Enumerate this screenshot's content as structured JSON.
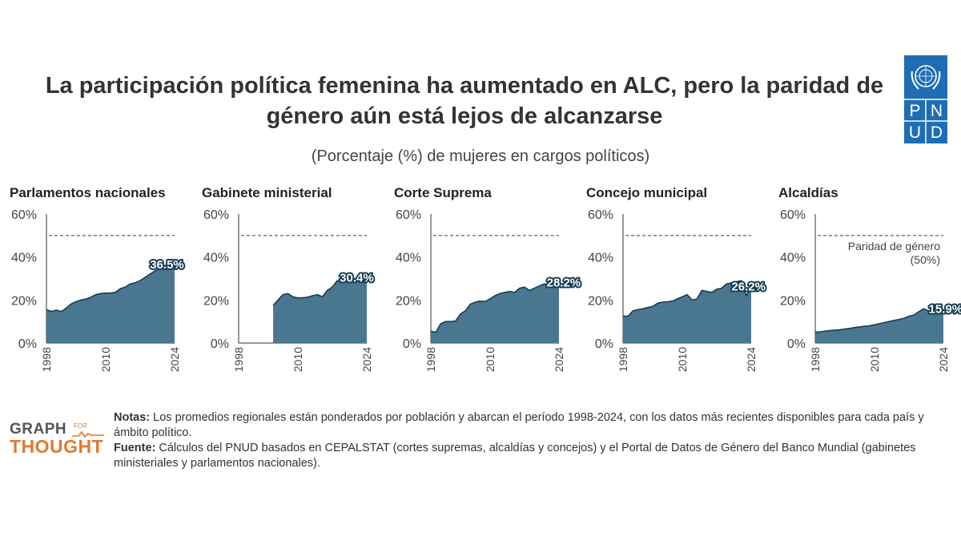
{
  "title": {
    "line1": "La participación política femenina ha aumentado en ALC, pero la paridad de",
    "line2": "género aún está lejos de alcanzarse"
  },
  "subtitle": "(Porcentaje (%) de mujeres en cargos políticos)",
  "undp_logo": {
    "letters": [
      "P",
      "N",
      "U",
      "D"
    ],
    "color": "#1F6EB4"
  },
  "colors": {
    "area": "#4A7790",
    "line": "#163C52",
    "parity_line": "#888888",
    "label_outline": "#163C52"
  },
  "chart_data": [
    {
      "type": "area",
      "title": "Parlamentos nacionales",
      "x_ticks": [
        "1998",
        "2010",
        "2024"
      ],
      "y_ticks": [
        "0%",
        "20%",
        "40%",
        "60%"
      ],
      "ylim": [
        0,
        60
      ],
      "xlim": [
        1998,
        2024
      ],
      "parity": 50,
      "x": [
        1998,
        1999,
        2000,
        2001,
        2002,
        2003,
        2004,
        2005,
        2006,
        2007,
        2008,
        2009,
        2010,
        2011,
        2012,
        2013,
        2014,
        2015,
        2016,
        2017,
        2018,
        2019,
        2020,
        2021,
        2022,
        2023,
        2024
      ],
      "values": [
        15.5,
        14.7,
        15.3,
        14.6,
        16.2,
        18.2,
        19.2,
        20.0,
        20.4,
        21.3,
        22.5,
        23.0,
        23.2,
        23.2,
        23.6,
        25.3,
        26.0,
        27.5,
        28.0,
        29.0,
        30.5,
        32.0,
        33.5,
        34.5,
        36.0,
        36.2,
        36.5
      ],
      "label": "36.5%",
      "label_at": 2019
    },
    {
      "type": "area",
      "title": "Gabinete ministerial",
      "x_ticks": [
        "1998",
        "2010",
        "2024"
      ],
      "y_ticks": [
        "0%",
        "20%",
        "40%",
        "60%"
      ],
      "ylim": [
        0,
        60
      ],
      "xlim": [
        1998,
        2024
      ],
      "parity": 50,
      "x": [
        2005,
        2006,
        2007,
        2008,
        2009,
        2010,
        2011,
        2012,
        2013,
        2014,
        2015,
        2016,
        2017,
        2018,
        2019,
        2020,
        2021,
        2022,
        2023,
        2024
      ],
      "values": [
        17.5,
        20.0,
        22.5,
        23.0,
        21.5,
        21.0,
        21.0,
        21.3,
        22.0,
        22.5,
        21.5,
        24.5,
        26.0,
        29.0,
        28.0,
        28.5,
        30.0,
        29.5,
        31.5,
        30.4
      ],
      "label": "30.4%",
      "label_at": 2018.5
    },
    {
      "type": "area",
      "title": "Corte Suprema",
      "x_ticks": [
        "1998",
        "2010",
        "2024"
      ],
      "y_ticks": [
        "0%",
        "20%",
        "40%",
        "60%"
      ],
      "ylim": [
        0,
        60
      ],
      "xlim": [
        1998,
        2024
      ],
      "parity": 50,
      "x": [
        1998,
        1999,
        2000,
        2001,
        2002,
        2003,
        2004,
        2005,
        2006,
        2007,
        2008,
        2009,
        2010,
        2011,
        2012,
        2013,
        2014,
        2015,
        2016,
        2017,
        2018,
        2019,
        2020,
        2021,
        2022,
        2023,
        2024
      ],
      "values": [
        5.5,
        5.0,
        9.0,
        10.0,
        10.0,
        10.2,
        13.5,
        15.0,
        18.0,
        19.0,
        19.5,
        19.3,
        20.5,
        22.0,
        23.0,
        23.5,
        24.0,
        23.5,
        25.5,
        26.0,
        24.5,
        25.5,
        26.5,
        27.5,
        27.0,
        26.5,
        28.2
      ],
      "label": "28.2%",
      "label_at": 2021.5
    },
    {
      "type": "area",
      "title": "Concejo municipal",
      "x_ticks": [
        "1998",
        "2010",
        "2024"
      ],
      "y_ticks": [
        "0%",
        "20%",
        "40%",
        "60%"
      ],
      "ylim": [
        0,
        60
      ],
      "xlim": [
        1998,
        2024
      ],
      "parity": 50,
      "x": [
        1998,
        1999,
        2000,
        2001,
        2002,
        2003,
        2004,
        2005,
        2006,
        2007,
        2008,
        2009,
        2010,
        2011,
        2012,
        2013,
        2014,
        2015,
        2016,
        2017,
        2018,
        2019,
        2020,
        2021,
        2022,
        2023,
        2024
      ],
      "values": [
        12.5,
        12.5,
        15.0,
        15.5,
        16.0,
        16.5,
        17.0,
        18.5,
        19.0,
        19.2,
        19.5,
        20.5,
        21.5,
        22.5,
        20.0,
        20.5,
        24.5,
        24.0,
        23.5,
        25.0,
        25.5,
        27.5,
        28.0,
        28.5,
        29.0,
        22.0,
        26.2
      ],
      "label": "26.2%",
      "label_at": 2020
    },
    {
      "type": "area",
      "title": "Alcaldías",
      "x_ticks": [
        "1998",
        "2010",
        "2024"
      ],
      "y_ticks": [
        "0%",
        "20%",
        "40%",
        "60%"
      ],
      "ylim": [
        0,
        60
      ],
      "xlim": [
        1998,
        2024
      ],
      "parity": 50,
      "x": [
        1998,
        1999,
        2000,
        2001,
        2002,
        2003,
        2004,
        2005,
        2006,
        2007,
        2008,
        2009,
        2010,
        2011,
        2012,
        2013,
        2014,
        2015,
        2016,
        2017,
        2018,
        2019,
        2020,
        2021,
        2022,
        2023,
        2024
      ],
      "values": [
        5.0,
        5.2,
        5.5,
        5.8,
        6.0,
        6.2,
        6.5,
        6.8,
        7.2,
        7.5,
        7.8,
        8.0,
        8.5,
        9.0,
        9.5,
        10.0,
        10.5,
        11.0,
        11.5,
        12.5,
        13.0,
        14.5,
        16.0,
        15.0,
        14.5,
        13.5,
        15.9
      ],
      "label": "15.9%",
      "label_at": 2021,
      "parity_annotation": [
        "Paridad de género",
        "(50%)"
      ]
    }
  ],
  "branding": {
    "graph": "GRAPH",
    "for": "FOR",
    "thought": "THOUGHT"
  },
  "notes": {
    "notas_label": "Notas:",
    "notas_text": "Los promedios regionales están ponderados por población y abarcan el período 1998-2024, con los datos más recientes disponibles para cada país y ámbito político.",
    "fuente_label": "Fuente:",
    "fuente_text": "Cálculos del PNUD basados en CEPALSTAT (cortes supremas, alcaldías y concejos) y el Portal de Datos de Género del Banco Mundial (gabinetes ministeriales y parlamentos nacionales)."
  }
}
